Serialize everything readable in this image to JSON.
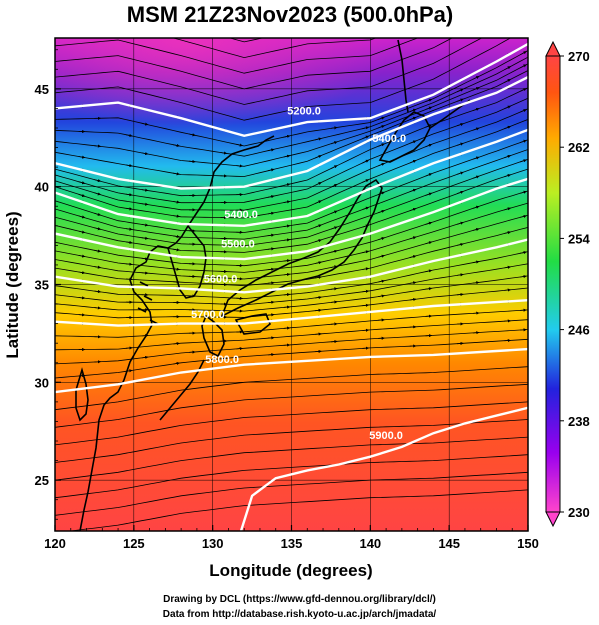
{
  "figure": {
    "title": "MSM 21Z23Nov2023 (500.0hPa)",
    "xlabel": "Longitude (degrees)",
    "ylabel": "Latitude  (degrees)",
    "credits": [
      "Drawing by DCL (https://www.gfd-dennou.org/library/dcl/)",
      "Data from http://database.rish.kyoto-u.ac.jp/arch/jmadata/"
    ]
  },
  "map": {
    "lon_range": [
      120,
      150
    ],
    "lat_range": [
      22.4,
      47.6
    ],
    "x_ticks": [
      "120",
      "125",
      "130",
      "135",
      "140",
      "145",
      "150"
    ],
    "y_ticks": [
      "25",
      "30",
      "35",
      "40",
      "45"
    ],
    "grid": true,
    "background": "temperature-shading",
    "overlay": [
      "streamlines",
      "coastlines",
      "height-contours"
    ]
  },
  "colorbar": {
    "min": 230,
    "max": 270,
    "ticks": [
      "270",
      "262",
      "254",
      "246",
      "238",
      "230"
    ],
    "colors": [
      "#ff44cc",
      "#9900ee",
      "#2222dd",
      "#22ccee",
      "#22dd44",
      "#bbee22",
      "#ffaa00",
      "#ff5511",
      "#ff4444"
    ]
  },
  "contours": [
    {
      "label": "5200.0",
      "lat_at_lon": [
        [
          120,
          44.0
        ],
        [
          124,
          44.3
        ],
        [
          128,
          43.5
        ],
        [
          132,
          42.6
        ],
        [
          136,
          43.3
        ],
        [
          140,
          43.5
        ],
        [
          144,
          44.7
        ],
        [
          148,
          46.4
        ],
        [
          150,
          47.3
        ]
      ],
      "label_lon": 135.8,
      "label_lat": 43.9
    },
    {
      "label": "5400.0",
      "lat_at_lon": [
        [
          120,
          41.2
        ],
        [
          124,
          40.4
        ],
        [
          128,
          39.9
        ],
        [
          132,
          40.0
        ],
        [
          136,
          40.8
        ],
        [
          140,
          42.4
        ],
        [
          144,
          43.7
        ],
        [
          148,
          44.8
        ],
        [
          150,
          45.6
        ]
      ],
      "label_lon": 141.2,
      "label_lat": 42.5
    },
    {
      "label": "5400.0",
      "lat_at_lon": [
        [
          120,
          39.7
        ],
        [
          124,
          38.6
        ],
        [
          128,
          38.1
        ],
        [
          132,
          38.0
        ],
        [
          136,
          38.5
        ],
        [
          140,
          39.9
        ],
        [
          144,
          41.2
        ],
        [
          148,
          42.3
        ],
        [
          150,
          42.9
        ]
      ],
      "label_lon": 131.8,
      "label_lat": 38.6
    },
    {
      "label": "5500.0",
      "lat_at_lon": [
        [
          120,
          37.6
        ],
        [
          124,
          36.9
        ],
        [
          128,
          36.4
        ],
        [
          132,
          36.3
        ],
        [
          136,
          36.7
        ],
        [
          140,
          37.6
        ],
        [
          144,
          38.7
        ],
        [
          148,
          39.9
        ],
        [
          150,
          40.4
        ]
      ],
      "label_lon": 131.6,
      "label_lat": 37.1
    },
    {
      "label": "5600.0",
      "lat_at_lon": [
        [
          120,
          35.4
        ],
        [
          124,
          34.9
        ],
        [
          128,
          34.8
        ],
        [
          132,
          34.6
        ],
        [
          136,
          34.9
        ],
        [
          140,
          35.4
        ],
        [
          144,
          36.2
        ],
        [
          148,
          36.9
        ],
        [
          150,
          37.3
        ]
      ],
      "label_lon": 130.5,
      "label_lat": 35.3
    },
    {
      "label": "5700.0",
      "lat_at_lon": [
        [
          120,
          33.1
        ],
        [
          124,
          32.9
        ],
        [
          128,
          33.0
        ],
        [
          132,
          33.0
        ],
        [
          136,
          33.3
        ],
        [
          140,
          33.6
        ],
        [
          144,
          33.9
        ],
        [
          148,
          34.1
        ],
        [
          150,
          34.2
        ]
      ],
      "label_lon": 129.7,
      "label_lat": 33.5
    },
    {
      "label": "5800.0",
      "lat_at_lon": [
        [
          120,
          29.5
        ],
        [
          124,
          29.9
        ],
        [
          128,
          30.5
        ],
        [
          132,
          30.9
        ],
        [
          136,
          31.1
        ],
        [
          140,
          31.3
        ],
        [
          144,
          31.4
        ],
        [
          148,
          31.6
        ],
        [
          150,
          31.7
        ]
      ],
      "label_lon": 130.6,
      "label_lat": 31.2
    },
    {
      "label": "5900.0",
      "lat_at_lon": [
        [
          131.8,
          22.4
        ],
        [
          132.5,
          24.2
        ],
        [
          134,
          25.1
        ],
        [
          136,
          25.5
        ],
        [
          138,
          25.8
        ],
        [
          140,
          26.2
        ],
        [
          142,
          26.7
        ],
        [
          144,
          27.4
        ],
        [
          146,
          27.9
        ],
        [
          148,
          28.3
        ],
        [
          150,
          28.7
        ]
      ],
      "label_lon": 141.0,
      "label_lat": 27.3
    }
  ]
}
